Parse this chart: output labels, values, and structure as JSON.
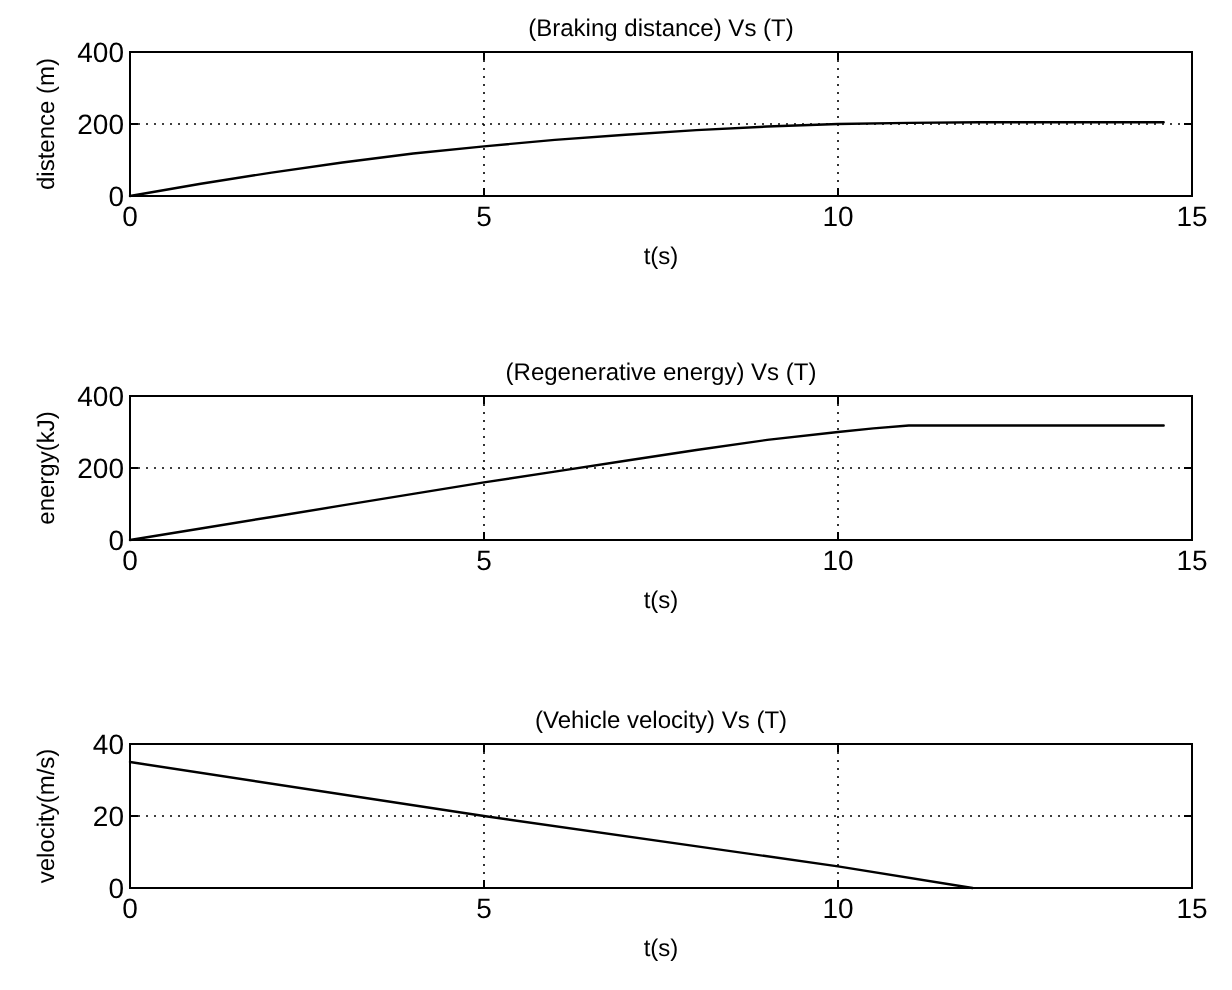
{
  "chart_data": [
    {
      "type": "line",
      "title": "(Braking distance) Vs (T)",
      "xlabel": "t(s)",
      "ylabel": "distence (m)",
      "x": [
        0,
        1,
        2,
        3,
        4,
        5,
        6,
        7,
        8,
        9,
        10,
        11,
        12,
        14.6
      ],
      "series": [
        {
          "color": "#000000",
          "values": [
            0,
            34,
            65,
            93,
            118,
            138,
            156,
            170,
            183,
            193,
            200,
            203,
            205,
            205
          ]
        }
      ],
      "xlim": [
        0,
        15
      ],
      "xticks": [
        0,
        5,
        10,
        15
      ],
      "ylim": [
        0,
        400
      ],
      "yticks": [
        0,
        200,
        400
      ],
      "grid": true,
      "line_style": "solid"
    },
    {
      "type": "line",
      "title": "(Regenerative energy) Vs (T)",
      "xlabel": "t(s)",
      "ylabel": "energy(kJ)",
      "x": [
        0,
        1,
        2,
        3,
        4,
        5,
        6,
        7,
        8,
        9,
        10,
        10.5,
        11,
        14.6
      ],
      "series": [
        {
          "color": "#000000",
          "values": [
            0,
            32,
            64,
            96,
            128,
            160,
            190,
            220,
            250,
            278,
            300,
            310,
            318,
            318
          ]
        }
      ],
      "xlim": [
        0,
        15
      ],
      "xticks": [
        0,
        5,
        10,
        15
      ],
      "ylim": [
        0,
        400
      ],
      "yticks": [
        0,
        200,
        400
      ],
      "grid": true,
      "line_style": "solid"
    },
    {
      "type": "line",
      "title": "(Vehicle velocity) Vs (T)",
      "xlabel": "t(s)",
      "ylabel": "velocity(m/s)",
      "x": [
        0,
        5,
        10,
        11.9
      ],
      "series": [
        {
          "color": "#000000",
          "values": [
            35,
            20,
            6,
            0
          ]
        }
      ],
      "xlim": [
        0,
        15
      ],
      "xticks": [
        0,
        5,
        10,
        15
      ],
      "ylim": [
        0,
        40
      ],
      "yticks": [
        0,
        20,
        40
      ],
      "grid": true,
      "line_style": "solid"
    }
  ]
}
